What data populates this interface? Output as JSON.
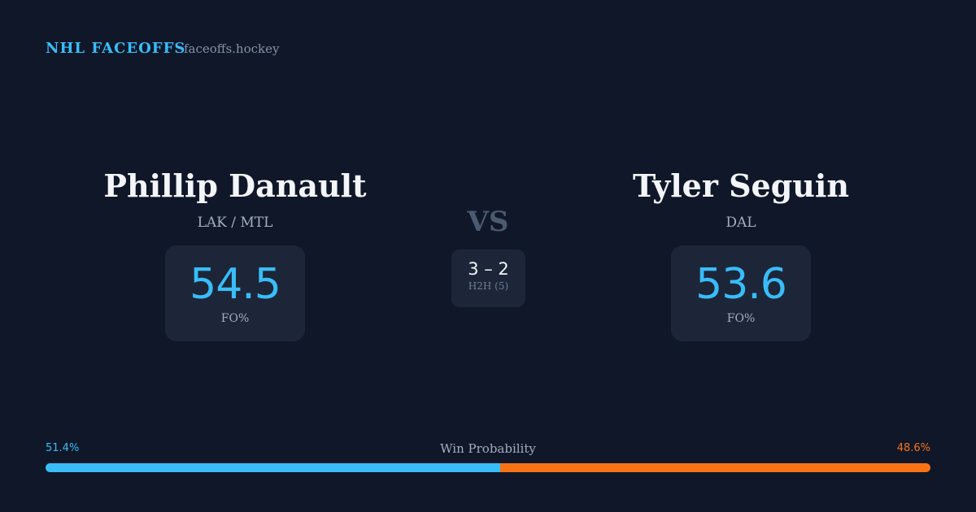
{
  "header": {
    "title": "NHL FACEOFFS",
    "site": "faceoffs.hockey"
  },
  "players": [
    {
      "name": "Phillip Danault",
      "team": "LAK / MTL",
      "fo_pct": "54.5",
      "fo_label": "FO%"
    },
    {
      "name": "Tyler Seguin",
      "team": "DAL",
      "fo_pct": "53.6",
      "fo_label": "FO%"
    }
  ],
  "versus": "VS",
  "head_to_head": {
    "score": "3 – 2",
    "label": "H2H (5)"
  },
  "win_probability": {
    "title": "Win Probability",
    "left": {
      "value": 51.4,
      "label": "51.4%",
      "color": "#38bdf8"
    },
    "right": {
      "value": 48.6,
      "label": "48.6%",
      "color": "#f97316"
    }
  }
}
